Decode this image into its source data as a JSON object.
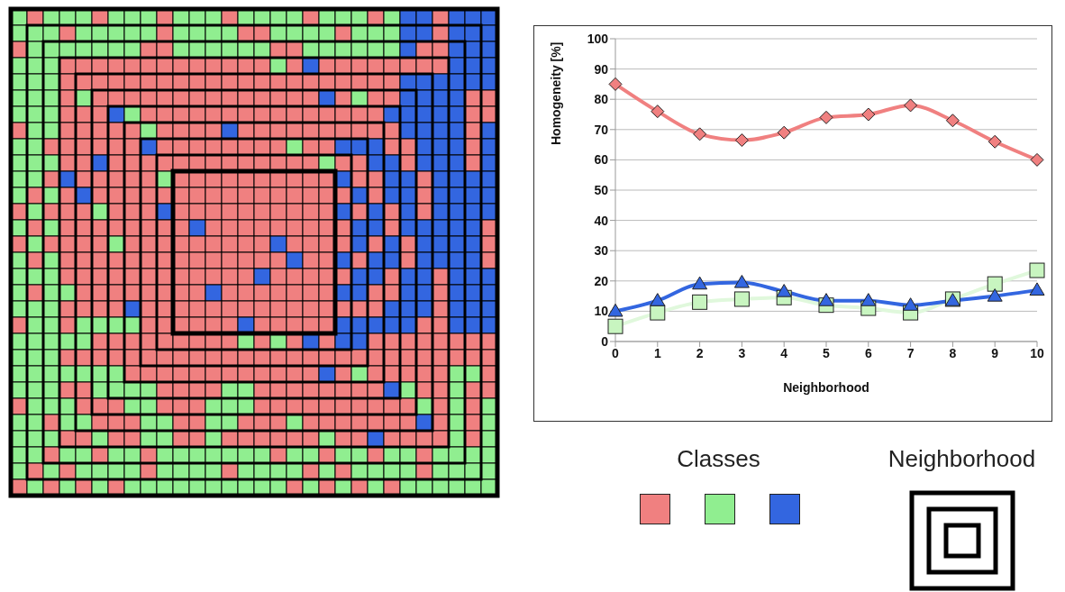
{
  "chart_data": {
    "type": "line",
    "xlabel": "Neighborhood",
    "ylabel": "Homogeneity [%]",
    "categories": [
      "0",
      "1",
      "2",
      "3",
      "4",
      "5",
      "6",
      "7",
      "8",
      "9",
      "10"
    ],
    "series": [
      {
        "color": "#c8f5c0",
        "marker": "square",
        "values": [
          5,
          9.5,
          13,
          14,
          14.5,
          12,
          11,
          9.5,
          14,
          19,
          23.5
        ]
      },
      {
        "color": "#3366e0",
        "marker": "triangle",
        "values": [
          10,
          13.5,
          19,
          19.5,
          16.5,
          13.5,
          13.5,
          12,
          13.5,
          15,
          17
        ]
      },
      {
        "color": "#f08080",
        "marker": "diamond",
        "values": [
          85,
          76,
          68.5,
          66.5,
          69,
          74,
          75,
          78,
          73,
          66,
          60
        ]
      }
    ],
    "ylim": [
      0,
      100
    ],
    "yticks": [
      0,
      10,
      20,
      30,
      40,
      50,
      60,
      70,
      80,
      90,
      100
    ],
    "grid": "y",
    "legend": false,
    "annotations": [
      "Classes",
      "Neighborhood"
    ]
  }
}
